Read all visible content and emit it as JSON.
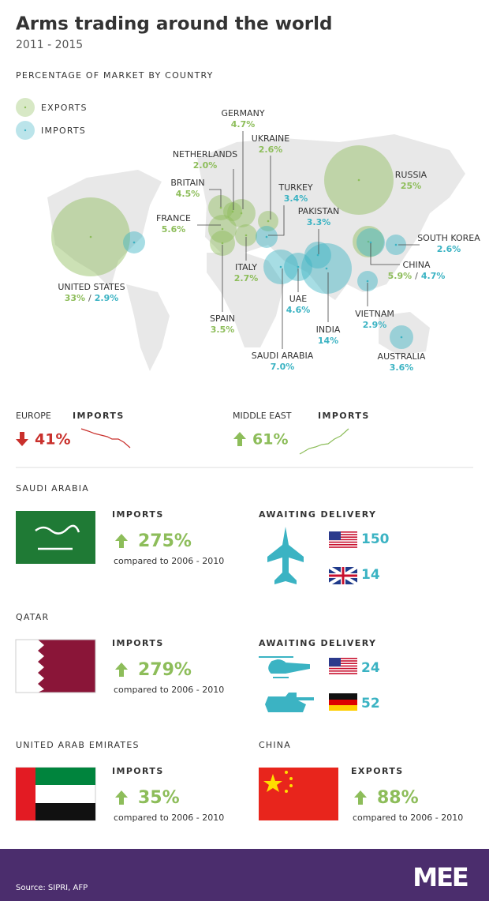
{
  "header": {
    "title": "Arms trading around the world",
    "subtitle": "2011 - 2015"
  },
  "map": {
    "title": "PERCENTAGE OF MARKET BY COUNTRY",
    "legend": {
      "exports": "EXPORTS",
      "imports": "IMPORTS"
    },
    "separator": "/",
    "countries": [
      {
        "name": "GERMANY",
        "exports": "4.7%"
      },
      {
        "name": "UKRAINE",
        "exports": "2.6%"
      },
      {
        "name": "NETHERLANDS",
        "exports": "2.0%"
      },
      {
        "name": "BRITAIN",
        "exports": "4.5%"
      },
      {
        "name": "FRANCE",
        "exports": "5.6%"
      },
      {
        "name": "RUSSIA",
        "exports": "25%"
      },
      {
        "name": "ITALY",
        "exports": "2.7%"
      },
      {
        "name": "SPAIN",
        "exports": "3.5%"
      },
      {
        "name": "UNITED STATES",
        "exports": "33%",
        "imports": "2.9%"
      },
      {
        "name": "CHINA",
        "exports": "5.9%",
        "imports": "4.7%"
      },
      {
        "name": "TURKEY",
        "imports": "3.4%"
      },
      {
        "name": "PAKISTAN",
        "imports": "3.3%"
      },
      {
        "name": "SOUTH KOREA",
        "imports": "2.6%"
      },
      {
        "name": "UAE",
        "imports": "4.6%"
      },
      {
        "name": "INDIA",
        "imports": "14%"
      },
      {
        "name": "VIETNAM",
        "imports": "2.9%"
      },
      {
        "name": "SAUDI ARABIA",
        "imports": "7.0%"
      },
      {
        "name": "AUSTRALIA",
        "imports": "3.6%"
      }
    ]
  },
  "trends": [
    {
      "region": "EUROPE",
      "label": "IMPORTS",
      "change": "41%"
    },
    {
      "region": "MIDDLE EAST",
      "label": "IMPORTS",
      "change": "61%"
    }
  ],
  "profiles": [
    {
      "country": "SAUDI ARABIA",
      "label": "IMPORTS",
      "change": "275%",
      "note": "compared to 2006 - 2010",
      "awaiting": "AWAITING DELIVERY",
      "deliveries": [
        "150",
        "14"
      ]
    },
    {
      "country": "QATAR",
      "label": "IMPORTS",
      "change": "279%",
      "note": "compared to 2006 - 2010",
      "awaiting": "AWAITING DELIVERY",
      "deliveries": [
        "24",
        "52"
      ]
    },
    {
      "country": "UNITED ARAB EMIRATES",
      "label": "IMPORTS",
      "change": "35%",
      "note": "compared to 2006 - 2010"
    },
    {
      "country": "CHINA",
      "label": "EXPORTS",
      "change": "88%",
      "note": "compared to 2006 - 2010"
    }
  ],
  "footer": {
    "source": "Source: SIPRI, AFP",
    "logo": "MEE"
  }
}
